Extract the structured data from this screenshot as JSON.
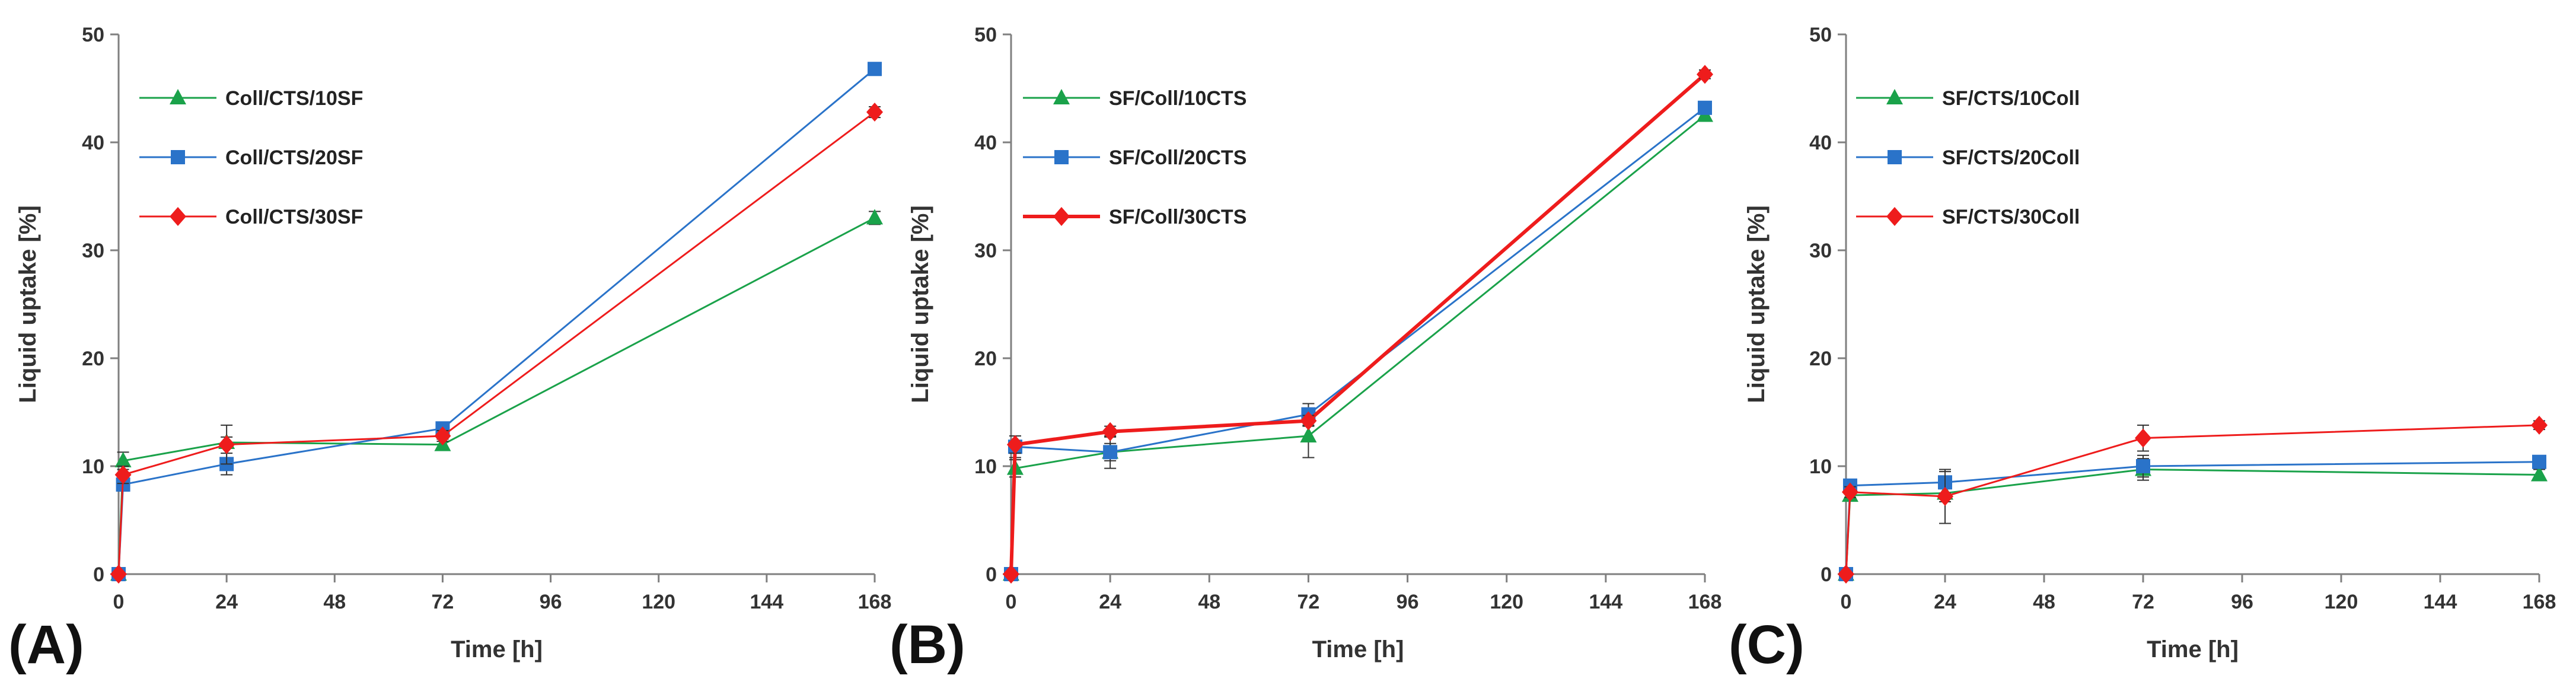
{
  "colors": {
    "green": "#1aa24a",
    "blue": "#2a73c9",
    "red": "#ee1c1c",
    "axis": "#7f7f7f"
  },
  "chart_data": [
    {
      "type": "line",
      "panel_label": "(A)",
      "xlabel": "Time [h]",
      "ylabel": "Liquid uptake [%]",
      "xlim": [
        0,
        168
      ],
      "ylim": [
        0,
        50
      ],
      "xticks": [
        0,
        24,
        48,
        72,
        96,
        120,
        144,
        168
      ],
      "yticks": [
        0,
        10,
        20,
        30,
        40,
        50
      ],
      "legend_position": "top-left",
      "series": [
        {
          "name": "Coll/CTS/10SF",
          "color": "#1aa24a",
          "marker": "triangle",
          "x": [
            0,
            1,
            24,
            72,
            168
          ],
          "y": [
            0,
            10.5,
            12.2,
            12.0,
            33.0
          ],
          "err": [
            0,
            0.8,
            0.5,
            0.5,
            0.6
          ]
        },
        {
          "name": "Coll/CTS/20SF",
          "color": "#2a73c9",
          "marker": "square",
          "x": [
            0,
            1,
            24,
            72,
            168
          ],
          "y": [
            0,
            8.3,
            10.2,
            13.5,
            46.8
          ],
          "err": [
            0,
            0.6,
            1.0,
            0.5,
            0.5
          ]
        },
        {
          "name": "Coll/CTS/30SF",
          "color": "#ee1c1c",
          "marker": "diamond",
          "x": [
            0,
            1,
            24,
            72,
            168
          ],
          "y": [
            0,
            9.2,
            12.0,
            12.8,
            42.8
          ],
          "err": [
            0,
            0.8,
            1.8,
            0.5,
            0.5
          ]
        }
      ]
    },
    {
      "type": "line",
      "panel_label": "(B)",
      "xlabel": "Time [h]",
      "ylabel": "Liquid uptake [%]",
      "xlim": [
        0,
        168
      ],
      "ylim": [
        0,
        50
      ],
      "xticks": [
        0,
        24,
        48,
        72,
        96,
        120,
        144,
        168
      ],
      "yticks": [
        0,
        10,
        20,
        30,
        40,
        50
      ],
      "legend_position": "top-left",
      "series": [
        {
          "name": "SF/Coll/10CTS",
          "color": "#1aa24a",
          "marker": "triangle",
          "x": [
            0,
            1,
            24,
            72,
            168
          ],
          "y": [
            0,
            9.8,
            11.3,
            12.8,
            42.5
          ],
          "err": [
            0,
            0.8,
            1.5,
            2.0,
            0.5
          ]
        },
        {
          "name": "SF/Coll/20CTS",
          "color": "#2a73c9",
          "marker": "square",
          "x": [
            0,
            1,
            24,
            72,
            168
          ],
          "y": [
            0,
            11.8,
            11.3,
            14.8,
            43.2
          ],
          "err": [
            0,
            1.0,
            0.8,
            1.0,
            0.5
          ]
        },
        {
          "name": "SF/Coll/30CTS",
          "color": "#ee1c1c",
          "marker": "diamond",
          "x": [
            0,
            1,
            24,
            72,
            168
          ],
          "y": [
            0,
            12.0,
            13.2,
            14.2,
            46.3
          ],
          "err": [
            0,
            0.8,
            0.5,
            0.5,
            0.4
          ]
        }
      ]
    },
    {
      "type": "line",
      "panel_label": "(C)",
      "xlabel": "Time [h]",
      "ylabel": "Liquid uptake [%]",
      "xlim": [
        0,
        168
      ],
      "ylim": [
        0,
        50
      ],
      "xticks": [
        0,
        24,
        48,
        72,
        96,
        120,
        144,
        168
      ],
      "yticks": [
        0,
        10,
        20,
        30,
        40,
        50
      ],
      "legend_position": "top-left",
      "series": [
        {
          "name": "SF/CTS/10Coll",
          "color": "#1aa24a",
          "marker": "triangle",
          "x": [
            0,
            1,
            24,
            72,
            168
          ],
          "y": [
            0,
            7.3,
            7.5,
            9.7,
            9.2
          ],
          "err": [
            0,
            0.5,
            0.8,
            1.0,
            0.5
          ]
        },
        {
          "name": "SF/CTS/20Coll",
          "color": "#2a73c9",
          "marker": "square",
          "x": [
            0,
            1,
            24,
            72,
            168
          ],
          "y": [
            0,
            8.2,
            8.5,
            10.0,
            10.4
          ],
          "err": [
            0,
            0.5,
            1.0,
            1.0,
            0.4
          ]
        },
        {
          "name": "SF/CTS/30Coll",
          "color": "#ee1c1c",
          "marker": "diamond",
          "x": [
            0,
            1,
            24,
            72,
            168
          ],
          "y": [
            0,
            7.6,
            7.2,
            12.6,
            13.8
          ],
          "err": [
            0,
            0.5,
            2.5,
            1.2,
            0.4
          ]
        }
      ]
    }
  ]
}
